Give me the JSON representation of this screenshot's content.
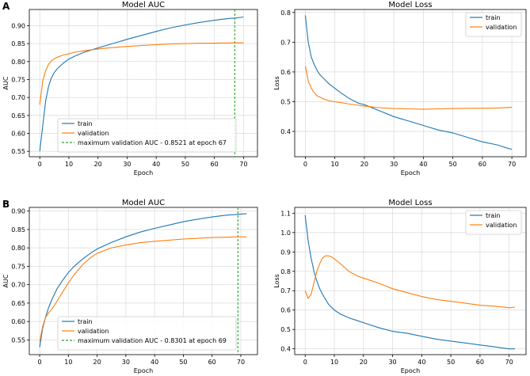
{
  "colors": {
    "train": "#1f77b4",
    "validation": "#ff7f0e",
    "marker": "#2ca02c",
    "grid": "#dddddd"
  },
  "panels": [
    {
      "letter": "A"
    },
    {
      "letter": "B"
    }
  ],
  "chart_data": [
    {
      "type": "line",
      "title": "Model AUC",
      "xlabel": "Epoch",
      "ylabel": "AUC",
      "xlim": [
        -3.6,
        74.8
      ],
      "ylim": [
        0.535,
        0.945
      ],
      "xticks": [
        0,
        10,
        20,
        30,
        40,
        50,
        60,
        70
      ],
      "yticks": [
        0.55,
        0.6,
        0.65,
        0.7,
        0.75,
        0.8,
        0.85,
        0.9
      ],
      "yfmt": 2,
      "grid": true,
      "legend_position": "lower-left",
      "series": [
        {
          "name": "train",
          "x": [
            0,
            1,
            2,
            3,
            4,
            5,
            6,
            8,
            10,
            12,
            15,
            18,
            20,
            25,
            30,
            35,
            40,
            45,
            50,
            55,
            60,
            65,
            67,
            70
          ],
          "y": [
            0.55,
            0.62,
            0.69,
            0.73,
            0.755,
            0.77,
            0.78,
            0.795,
            0.807,
            0.815,
            0.825,
            0.833,
            0.838,
            0.85,
            0.862,
            0.873,
            0.884,
            0.894,
            0.902,
            0.909,
            0.915,
            0.92,
            0.921,
            0.924
          ]
        },
        {
          "name": "validation",
          "x": [
            0,
            1,
            2,
            3,
            4,
            5,
            6,
            8,
            10,
            12,
            15,
            18,
            20,
            25,
            30,
            35,
            40,
            45,
            50,
            55,
            60,
            65,
            67,
            70
          ],
          "y": [
            0.68,
            0.745,
            0.775,
            0.792,
            0.802,
            0.808,
            0.812,
            0.818,
            0.822,
            0.826,
            0.83,
            0.833,
            0.835,
            0.839,
            0.842,
            0.845,
            0.847,
            0.849,
            0.85,
            0.851,
            0.851,
            0.852,
            0.8521,
            0.852
          ]
        }
      ],
      "vline": {
        "x": 67,
        "label": "maximum validation AUC - 0.8521 at epoch 67"
      }
    },
    {
      "type": "line",
      "title": "Model Loss",
      "xlabel": "Epoch",
      "ylabel": "Loss",
      "xlim": [
        -3.6,
        74.8
      ],
      "ylim": [
        0.315,
        0.81
      ],
      "xticks": [
        0,
        10,
        20,
        30,
        40,
        50,
        60,
        70
      ],
      "yticks": [
        0.4,
        0.5,
        0.6,
        0.7,
        0.8
      ],
      "yfmt": 1,
      "grid": true,
      "legend_position": "upper-right",
      "series": [
        {
          "name": "train",
          "x": [
            0,
            1,
            2,
            3,
            4,
            5,
            6,
            8,
            10,
            12,
            15,
            18,
            20,
            25,
            30,
            35,
            40,
            45,
            50,
            55,
            60,
            65,
            68,
            70
          ],
          "y": [
            0.79,
            0.7,
            0.65,
            0.625,
            0.605,
            0.59,
            0.58,
            0.56,
            0.545,
            0.53,
            0.51,
            0.495,
            0.49,
            0.47,
            0.45,
            0.435,
            0.42,
            0.405,
            0.395,
            0.38,
            0.365,
            0.355,
            0.345,
            0.34
          ]
        },
        {
          "name": "validation",
          "x": [
            0,
            1,
            2,
            3,
            4,
            5,
            6,
            8,
            10,
            12,
            15,
            18,
            20,
            25,
            30,
            35,
            40,
            45,
            50,
            55,
            60,
            65,
            70
          ],
          "y": [
            0.62,
            0.57,
            0.545,
            0.53,
            0.52,
            0.515,
            0.51,
            0.503,
            0.5,
            0.497,
            0.492,
            0.488,
            0.485,
            0.48,
            0.477,
            0.476,
            0.475,
            0.476,
            0.477,
            0.478,
            0.478,
            0.479,
            0.481
          ]
        }
      ]
    },
    {
      "type": "line",
      "title": "Model AUC",
      "xlabel": "Epoch",
      "ylabel": "AUC",
      "xlim": [
        -3.6,
        75.8
      ],
      "ylim": [
        0.51,
        0.91
      ],
      "xticks": [
        0,
        10,
        20,
        30,
        40,
        50,
        60,
        70
      ],
      "yticks": [
        0.55,
        0.6,
        0.65,
        0.7,
        0.75,
        0.8,
        0.85,
        0.9
      ],
      "yfmt": 2,
      "grid": true,
      "legend_position": "lower-left",
      "series": [
        {
          "name": "train",
          "x": [
            0,
            1,
            2,
            3,
            4,
            5,
            6,
            8,
            10,
            12,
            15,
            18,
            20,
            25,
            30,
            35,
            40,
            45,
            50,
            55,
            60,
            65,
            69,
            72
          ],
          "y": [
            0.53,
            0.58,
            0.61,
            0.635,
            0.655,
            0.672,
            0.688,
            0.712,
            0.733,
            0.75,
            0.77,
            0.787,
            0.797,
            0.815,
            0.83,
            0.843,
            0.853,
            0.862,
            0.871,
            0.878,
            0.884,
            0.889,
            0.891,
            0.893
          ]
        },
        {
          "name": "validation",
          "x": [
            0,
            1,
            2,
            3,
            4,
            5,
            6,
            8,
            10,
            12,
            15,
            18,
            20,
            25,
            30,
            35,
            40,
            45,
            50,
            55,
            60,
            65,
            69,
            72
          ],
          "y": [
            0.545,
            0.585,
            0.61,
            0.622,
            0.632,
            0.642,
            0.655,
            0.68,
            0.705,
            0.727,
            0.755,
            0.775,
            0.785,
            0.8,
            0.808,
            0.814,
            0.818,
            0.821,
            0.824,
            0.826,
            0.828,
            0.829,
            0.8301,
            0.83
          ]
        }
      ],
      "vline": {
        "x": 69,
        "label": "maximum validation AUC - 0.8301 at epoch 69"
      }
    },
    {
      "type": "line",
      "title": "Model Loss",
      "xlabel": "Epoch",
      "ylabel": "Loss",
      "xlim": [
        -3.6,
        75.8
      ],
      "ylim": [
        0.37,
        1.13
      ],
      "xticks": [
        0,
        10,
        20,
        30,
        40,
        50,
        60,
        70
      ],
      "yticks": [
        0.4,
        0.5,
        0.6,
        0.7,
        0.8,
        0.9,
        1.0,
        1.1
      ],
      "yfmt": 1,
      "grid": true,
      "legend_position": "upper-right",
      "series": [
        {
          "name": "train",
          "x": [
            0,
            1,
            2,
            3,
            4,
            5,
            6,
            8,
            10,
            12,
            15,
            18,
            20,
            25,
            30,
            35,
            40,
            45,
            50,
            55,
            60,
            65,
            70,
            72
          ],
          "y": [
            1.09,
            0.96,
            0.87,
            0.8,
            0.75,
            0.71,
            0.68,
            0.63,
            0.6,
            0.58,
            0.56,
            0.545,
            0.535,
            0.51,
            0.49,
            0.48,
            0.465,
            0.45,
            0.44,
            0.43,
            0.42,
            0.41,
            0.4,
            0.4
          ]
        },
        {
          "name": "validation",
          "x": [
            0,
            1,
            2,
            3,
            4,
            5,
            6,
            7,
            8,
            9,
            10,
            12,
            15,
            18,
            20,
            25,
            30,
            35,
            40,
            45,
            50,
            55,
            60,
            65,
            70,
            72
          ],
          "y": [
            0.7,
            0.66,
            0.68,
            0.74,
            0.8,
            0.84,
            0.87,
            0.88,
            0.88,
            0.875,
            0.865,
            0.84,
            0.8,
            0.775,
            0.765,
            0.74,
            0.71,
            0.69,
            0.67,
            0.655,
            0.645,
            0.635,
            0.625,
            0.62,
            0.612,
            0.615
          ]
        }
      ]
    }
  ]
}
